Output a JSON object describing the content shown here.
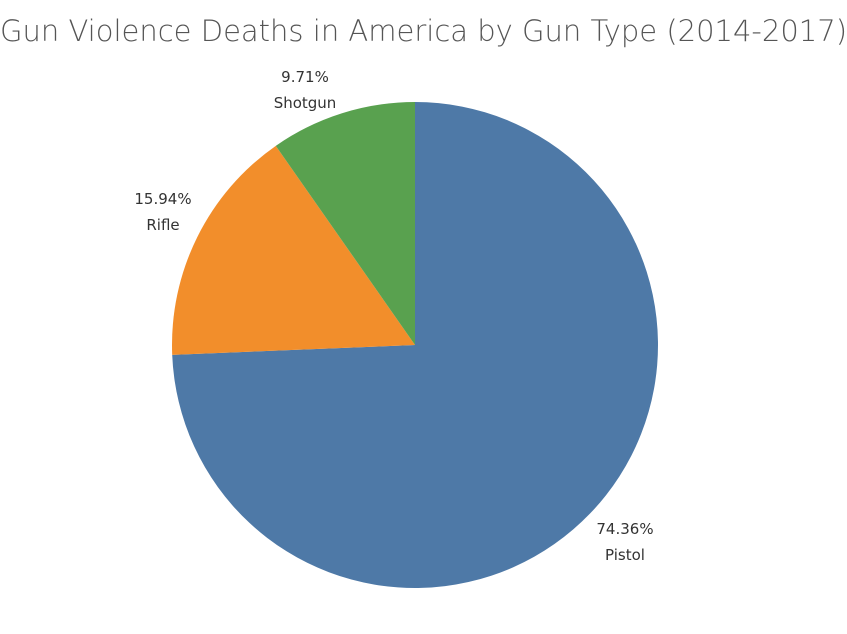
{
  "chart_data": {
    "type": "pie",
    "title": "Gun Violence Deaths in America by Gun Type (2014-2017)",
    "slices": [
      {
        "label": "Pistol",
        "value": 74.36,
        "value_text": "74.36%",
        "color": "#4e79a7"
      },
      {
        "label": "Rifle",
        "value": 15.94,
        "value_text": "15.94%",
        "color": "#f28e2b"
      },
      {
        "label": "Shotgun",
        "value": 9.71,
        "value_text": "9.71%",
        "color": "#59a14f"
      }
    ],
    "start_angle": "12 o'clock",
    "direction": "clockwise",
    "legend": "none"
  }
}
